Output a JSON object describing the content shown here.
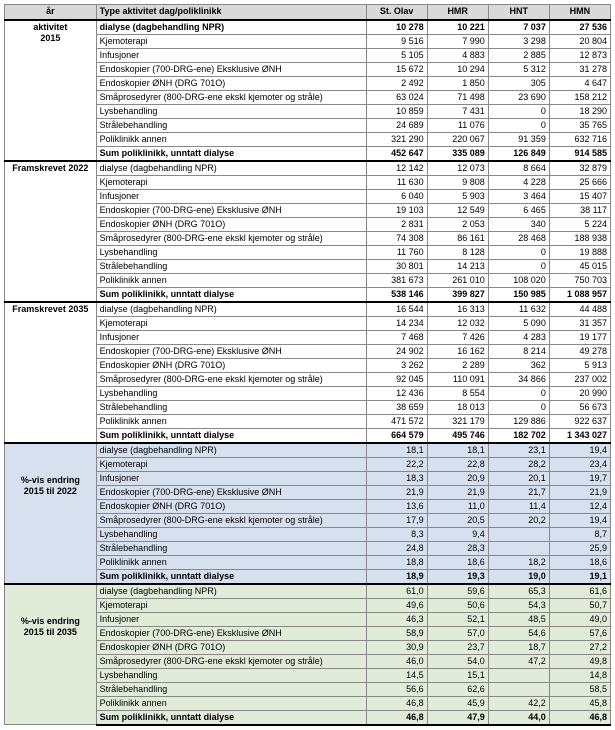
{
  "columns": {
    "year": "år",
    "type": "Type aktivitet dag/poliklinikk",
    "stolav": "St. Olav",
    "hmr": "HMR",
    "hnt": "HNT",
    "hmn": "HMN"
  },
  "sections": [
    {
      "label_top": "aktivitet",
      "label_sub": "2015",
      "bg": "",
      "rows": [
        {
          "type": "dialyse (dagbehandling NPR)",
          "v": [
            "10 278",
            "10 221",
            "7 037",
            "27 536"
          ],
          "bold": true
        },
        {
          "type": "Kjemoterapi",
          "v": [
            "9 516",
            "7 990",
            "3 298",
            "20 804"
          ]
        },
        {
          "type": "Infusjoner",
          "v": [
            "5 105",
            "4 883",
            "2 885",
            "12 873"
          ]
        },
        {
          "type": "Endoskopier (700-DRG-ene) Eksklusive ØNH",
          "v": [
            "15 672",
            "10 294",
            "5 312",
            "31 278"
          ]
        },
        {
          "type": "Endoskopier ØNH (DRG 701O)",
          "v": [
            "2 492",
            "1 850",
            "305",
            "4 647"
          ]
        },
        {
          "type": "Småprosedyrer (800-DRG-ene ekskl kjemoter og stråle)",
          "v": [
            "63 024",
            "71 498",
            "23 690",
            "158 212"
          ]
        },
        {
          "type": "Lysbehandling",
          "v": [
            "10 859",
            "7 431",
            "0",
            "18 290"
          ]
        },
        {
          "type": "Strålebehandling",
          "v": [
            "24 689",
            "11 076",
            "0",
            "35 765"
          ]
        },
        {
          "type": "Poliklinikk annen",
          "v": [
            "321 290",
            "220 067",
            "91 359",
            "632 716"
          ]
        },
        {
          "type": "Sum poliklinikk, unntatt dialyse",
          "v": [
            "452 647",
            "335 089",
            "126 849",
            "914 585"
          ],
          "sum": true
        }
      ]
    },
    {
      "label_top": "Framskrevet 2022",
      "label_sub": "",
      "bg": "",
      "rows": [
        {
          "type": "dialyse (dagbehandling NPR)",
          "v": [
            "12 142",
            "12 073",
            "8 664",
            "32 879"
          ]
        },
        {
          "type": "Kjemoterapi",
          "v": [
            "11 630",
            "9 808",
            "4 228",
            "25 666"
          ]
        },
        {
          "type": "Infusjoner",
          "v": [
            "6 040",
            "5 903",
            "3 464",
            "15 407"
          ]
        },
        {
          "type": "Endoskopier (700-DRG-ene) Eksklusive ØNH",
          "v": [
            "19 103",
            "12 549",
            "6 465",
            "38 117"
          ]
        },
        {
          "type": "Endoskopier ØNH (DRG 701O)",
          "v": [
            "2 831",
            "2 053",
            "340",
            "5 224"
          ]
        },
        {
          "type": "Småprosedyrer (800-DRG-ene ekskl kjemoter og stråle)",
          "v": [
            "74 308",
            "86 161",
            "28 468",
            "188 938"
          ]
        },
        {
          "type": "Lysbehandling",
          "v": [
            "11 760",
            "8 128",
            "0",
            "19 888"
          ]
        },
        {
          "type": "Strålebehandling",
          "v": [
            "30 801",
            "14 213",
            "0",
            "45 015"
          ]
        },
        {
          "type": "Poliklinikk annen",
          "v": [
            "381 673",
            "261 010",
            "108 020",
            "750 703"
          ]
        },
        {
          "type": "Sum poliklinikk, unntatt dialyse",
          "v": [
            "538 146",
            "399 827",
            "150 985",
            "1 088 957"
          ],
          "sum": true
        }
      ]
    },
    {
      "label_top": "Framskrevet 2035",
      "label_sub": "",
      "bg": "",
      "rows": [
        {
          "type": "dialyse (dagbehandling NPR)",
          "v": [
            "16 544",
            "16 313",
            "11 632",
            "44 488"
          ]
        },
        {
          "type": "Kjemoterapi",
          "v": [
            "14 234",
            "12 032",
            "5 090",
            "31 357"
          ]
        },
        {
          "type": "Infusjoner",
          "v": [
            "7 468",
            "7 426",
            "4 283",
            "19 177"
          ]
        },
        {
          "type": "Endoskopier (700-DRG-ene) Eksklusive ØNH",
          "v": [
            "24 902",
            "16 162",
            "8 214",
            "49 278"
          ]
        },
        {
          "type": "Endoskopier ØNH (DRG 701O)",
          "v": [
            "3 262",
            "2 289",
            "362",
            "5 913"
          ]
        },
        {
          "type": "Småprosedyrer (800-DRG-ene ekskl kjemoter og stråle)",
          "v": [
            "92 045",
            "110 091",
            "34 866",
            "237 002"
          ]
        },
        {
          "type": "Lysbehandling",
          "v": [
            "12 436",
            "8 554",
            "0",
            "20 990"
          ]
        },
        {
          "type": "Strålebehandling",
          "v": [
            "38 659",
            "18 013",
            "0",
            "56 673"
          ]
        },
        {
          "type": "Poliklinikk annen",
          "v": [
            "471 572",
            "321 179",
            "129 886",
            "922 637"
          ]
        },
        {
          "type": "Sum poliklinikk, unntatt dialyse",
          "v": [
            "664 579",
            "495 746",
            "182 702",
            "1 343 027"
          ],
          "sum": true
        }
      ]
    },
    {
      "label_top": "",
      "label_sub": "%-vis endring",
      "label_sub2": "2015 til 2022",
      "bg": "bg-blue",
      "rows": [
        {
          "type": "dialyse (dagbehandling NPR)",
          "v": [
            "18,1",
            "18,1",
            "23,1",
            "19,4"
          ]
        },
        {
          "type": "Kjemoterapi",
          "v": [
            "22,2",
            "22,8",
            "28,2",
            "23,4"
          ]
        },
        {
          "type": "Infusjoner",
          "v": [
            "18,3",
            "20,9",
            "20,1",
            "19,7"
          ]
        },
        {
          "type": "Endoskopier (700-DRG-ene) Eksklusive ØNH",
          "v": [
            "21,9",
            "21,9",
            "21,7",
            "21,9"
          ]
        },
        {
          "type": "Endoskopier ØNH (DRG 701O)",
          "v": [
            "13,6",
            "11,0",
            "11,4",
            "12,4"
          ]
        },
        {
          "type": "Småprosedyrer (800-DRG-ene ekskl kjemoter og stråle)",
          "v": [
            "17,9",
            "20,5",
            "20,2",
            "19,4"
          ]
        },
        {
          "type": "Lysbehandling",
          "v": [
            "8,3",
            "9,4",
            "",
            "8,7"
          ]
        },
        {
          "type": "Strålebehandling",
          "v": [
            "24,8",
            "28,3",
            "",
            "25,9"
          ]
        },
        {
          "type": "Poliklinikk annen",
          "v": [
            "18,8",
            "18,6",
            "18,2",
            "18,6"
          ]
        },
        {
          "type": "Sum poliklinikk, unntatt dialyse",
          "v": [
            "18,9",
            "19,3",
            "19,0",
            "19,1"
          ],
          "sum": true
        }
      ]
    },
    {
      "label_top": "",
      "label_sub": "%-vis endring",
      "label_sub2": "2015 til 2035",
      "bg": "bg-green",
      "rows": [
        {
          "type": "dialyse (dagbehandling NPR)",
          "v": [
            "61,0",
            "59,6",
            "65,3",
            "61,6"
          ]
        },
        {
          "type": "Kjemoterapi",
          "v": [
            "49,6",
            "50,6",
            "54,3",
            "50,7"
          ]
        },
        {
          "type": "Infusjoner",
          "v": [
            "46,3",
            "52,1",
            "48,5",
            "49,0"
          ]
        },
        {
          "type": "Endoskopier (700-DRG-ene) Eksklusive ØNH",
          "v": [
            "58,9",
            "57,0",
            "54,6",
            "57,6"
          ]
        },
        {
          "type": "Endoskopier ØNH (DRG 701O)",
          "v": [
            "30,9",
            "23,7",
            "18,7",
            "27,2"
          ]
        },
        {
          "type": "Småprosedyrer (800-DRG-ene ekskl kjemoter og stråle)",
          "v": [
            "46,0",
            "54,0",
            "47,2",
            "49,8"
          ]
        },
        {
          "type": "Lysbehandling",
          "v": [
            "14,5",
            "15,1",
            "",
            "14,8"
          ]
        },
        {
          "type": "Strålebehandling",
          "v": [
            "56,6",
            "62,6",
            "",
            "58,5"
          ]
        },
        {
          "type": "Poliklinikk annen",
          "v": [
            "46,8",
            "45,9",
            "42,2",
            "45,8"
          ]
        },
        {
          "type": "Sum poliklinikk, unntatt dialyse",
          "v": [
            "46,8",
            "47,9",
            "44,0",
            "46,8"
          ],
          "sum": true
        }
      ]
    }
  ]
}
